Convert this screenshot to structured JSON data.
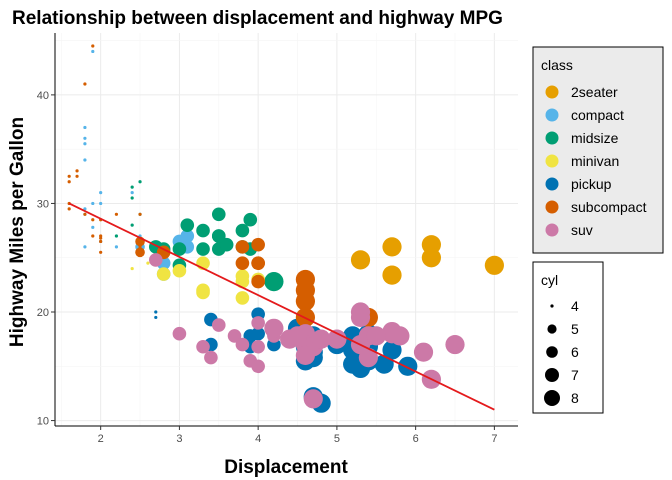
{
  "chart_data": {
    "type": "scatter",
    "title": "Relationship between  displacement and highway MPG",
    "xlabel": "Displacement",
    "ylabel": "Highway Miles per Gallon",
    "xlim": [
      1.42,
      7.3
    ],
    "ylim": [
      9.5,
      45.7
    ],
    "xticks": [
      2,
      3,
      4,
      5,
      6,
      7
    ],
    "yticks": [
      10,
      20,
      30,
      40
    ],
    "grid": true,
    "jitter": true,
    "legends": [
      {
        "title": "class",
        "kind": "color",
        "entries": [
          {
            "label": "2seater",
            "color": "#E69F00"
          },
          {
            "label": "compact",
            "color": "#56B4E9"
          },
          {
            "label": "midsize",
            "color": "#009E73"
          },
          {
            "label": "minivan",
            "color": "#F0E442"
          },
          {
            "label": "pickup",
            "color": "#0072B2"
          },
          {
            "label": "subcompact",
            "color": "#D55E00"
          },
          {
            "label": "suv",
            "color": "#CC79A7"
          }
        ]
      },
      {
        "title": "cyl",
        "kind": "size",
        "entries": [
          {
            "label": "4",
            "value": 4
          },
          {
            "label": "5",
            "value": 5
          },
          {
            "label": "6",
            "value": 6
          },
          {
            "label": "7",
            "value": 7
          },
          {
            "label": "8",
            "value": 8
          }
        ]
      }
    ],
    "trend_line": {
      "x": [
        1.6,
        7.0
      ],
      "y": [
        30.0,
        11.0
      ],
      "color": "#E41A1C"
    },
    "series": [
      {
        "name": "2seater",
        "color": "#E69F00",
        "points": [
          [
            5.3,
            24.8,
            8
          ],
          [
            5.7,
            23.4,
            8
          ],
          [
            5.7,
            26.0,
            8
          ],
          [
            6.2,
            26.2,
            8
          ],
          [
            6.2,
            25.0,
            8
          ],
          [
            7.0,
            24.3,
            8
          ]
        ]
      },
      {
        "name": "compact",
        "color": "#56B4E9",
        "points": [
          [
            1.8,
            29.0,
            4
          ],
          [
            1.8,
            29.5,
            4
          ],
          [
            1.9,
            27.8,
            4
          ],
          [
            2.0,
            31.0,
            4
          ],
          [
            2.0,
            30.0,
            4
          ],
          [
            1.8,
            34.0,
            4
          ],
          [
            1.8,
            35.5,
            4
          ],
          [
            1.8,
            37.0,
            4
          ],
          [
            1.8,
            36.0,
            4
          ],
          [
            1.9,
            44.0,
            4
          ],
          [
            2.0,
            26.5,
            4
          ],
          [
            1.8,
            26.0,
            4
          ],
          [
            2.4,
            31.0,
            4
          ],
          [
            2.5,
            27.0,
            4
          ],
          [
            2.5,
            26.0,
            5
          ],
          [
            2.8,
            24.5,
            6
          ],
          [
            2.8,
            23.5,
            6
          ],
          [
            3.0,
            26.5,
            6
          ],
          [
            3.1,
            27.0,
            6
          ],
          [
            3.1,
            26.0,
            6
          ],
          [
            2.2,
            26.0,
            4
          ],
          [
            1.9,
            30.0,
            4
          ]
        ]
      },
      {
        "name": "midsize",
        "color": "#009E73",
        "points": [
          [
            2.4,
            31.5,
            4
          ],
          [
            2.4,
            30.5,
            4
          ],
          [
            2.2,
            27.0,
            4
          ],
          [
            2.5,
            32.0,
            4
          ],
          [
            2.5,
            29.0,
            4
          ],
          [
            2.7,
            26.0,
            6
          ],
          [
            3.1,
            28.0,
            6
          ],
          [
            3.3,
            27.5,
            6
          ],
          [
            3.5,
            29.0,
            6
          ],
          [
            3.5,
            27.0,
            6
          ],
          [
            3.5,
            25.8,
            6
          ],
          [
            3.6,
            26.2,
            6
          ],
          [
            3.8,
            26.0,
            6
          ],
          [
            3.8,
            27.5,
            6
          ],
          [
            3.9,
            25.8,
            6
          ],
          [
            3.3,
            25.8,
            6
          ],
          [
            2.8,
            25.8,
            6
          ],
          [
            3.0,
            24.3,
            6
          ],
          [
            3.0,
            25.8,
            6
          ],
          [
            4.2,
            22.8,
            8
          ],
          [
            2.5,
            26.5,
            4
          ],
          [
            2.4,
            28.0,
            4
          ],
          [
            3.5,
            27.0,
            6
          ],
          [
            3.9,
            28.5,
            6
          ]
        ]
      },
      {
        "name": "minivan",
        "color": "#F0E442",
        "points": [
          [
            2.4,
            24.0,
            4
          ],
          [
            3.0,
            23.8,
            6
          ],
          [
            3.3,
            24.5,
            6
          ],
          [
            3.3,
            22.0,
            6
          ],
          [
            3.3,
            21.8,
            6
          ],
          [
            3.8,
            22.8,
            6
          ],
          [
            3.8,
            23.3,
            6
          ],
          [
            3.8,
            21.3,
            6
          ],
          [
            4.0,
            23.0,
            6
          ],
          [
            2.8,
            23.5,
            6
          ],
          [
            2.6,
            24.5,
            4
          ]
        ]
      },
      {
        "name": "pickup",
        "color": "#0072B2",
        "points": [
          [
            2.7,
            19.5,
            4
          ],
          [
            2.7,
            20.0,
            4
          ],
          [
            3.4,
            17.0,
            6
          ],
          [
            3.4,
            19.3,
            6
          ],
          [
            3.9,
            17.8,
            6
          ],
          [
            3.9,
            16.8,
            6
          ],
          [
            4.0,
            19.8,
            6
          ],
          [
            4.0,
            18.0,
            6
          ],
          [
            4.2,
            17.0,
            6
          ],
          [
            4.7,
            17.5,
            8
          ],
          [
            4.7,
            12.2,
            8
          ],
          [
            4.7,
            16.8,
            8
          ],
          [
            4.7,
            15.8,
            8
          ],
          [
            4.7,
            17.8,
            8
          ],
          [
            4.7,
            16.3,
            8
          ],
          [
            4.8,
            11.6,
            8
          ],
          [
            5.2,
            17.8,
            8
          ],
          [
            5.2,
            16.5,
            8
          ],
          [
            5.2,
            15.2,
            8
          ],
          [
            5.3,
            14.8,
            8
          ],
          [
            5.4,
            15.5,
            8
          ],
          [
            5.4,
            18.0,
            8
          ],
          [
            5.4,
            17.0,
            8
          ],
          [
            5.7,
            16.5,
            8
          ],
          [
            5.9,
            15.0,
            8
          ],
          [
            4.6,
            16.8,
            8
          ],
          [
            4.5,
            18.5,
            8
          ],
          [
            5.0,
            17.0,
            8
          ],
          [
            5.6,
            15.2,
            8
          ],
          [
            4.6,
            15.5,
            8
          ],
          [
            5.4,
            16.8,
            8
          ],
          [
            5.3,
            16.0,
            8
          ],
          [
            4.6,
            17.5,
            8
          ]
        ]
      },
      {
        "name": "subcompact",
        "color": "#D55E00",
        "points": [
          [
            1.6,
            32.5,
            4
          ],
          [
            1.6,
            32.0,
            4
          ],
          [
            1.6,
            29.5,
            4
          ],
          [
            1.6,
            30.0,
            4
          ],
          [
            1.8,
            29.0,
            4
          ],
          [
            1.8,
            41.0,
            4
          ],
          [
            1.9,
            44.5,
            4
          ],
          [
            2.0,
            28.5,
            4
          ],
          [
            2.0,
            26.5,
            4
          ],
          [
            2.0,
            25.5,
            4
          ],
          [
            2.0,
            26.8,
            4
          ],
          [
            2.2,
            29.0,
            4
          ],
          [
            2.5,
            29.0,
            4
          ],
          [
            2.5,
            26.5,
            5
          ],
          [
            2.5,
            25.5,
            5
          ],
          [
            1.7,
            32.5,
            4
          ],
          [
            1.7,
            33.0,
            4
          ],
          [
            1.9,
            28.5,
            4
          ],
          [
            2.0,
            27.0,
            4
          ],
          [
            1.9,
            27.0,
            4
          ],
          [
            3.8,
            24.5,
            6
          ],
          [
            3.8,
            26.0,
            6
          ],
          [
            4.0,
            24.5,
            6
          ],
          [
            4.0,
            26.2,
            6
          ],
          [
            4.0,
            24.5,
            6
          ],
          [
            4.0,
            22.8,
            6
          ],
          [
            4.6,
            22.0,
            8
          ],
          [
            4.6,
            21.0,
            8
          ],
          [
            4.6,
            23.0,
            8
          ],
          [
            4.6,
            19.5,
            8
          ],
          [
            5.4,
            19.5,
            8
          ],
          [
            2.8,
            25.5,
            6
          ],
          [
            2.5,
            26.0,
            4
          ]
        ]
      },
      {
        "name": "suv",
        "color": "#CC79A7",
        "points": [
          [
            2.7,
            24.8,
            6
          ],
          [
            3.0,
            18.0,
            6
          ],
          [
            3.3,
            16.8,
            6
          ],
          [
            3.5,
            18.8,
            6
          ],
          [
            3.7,
            17.8,
            6
          ],
          [
            3.8,
            17.0,
            6
          ],
          [
            3.9,
            15.5,
            6
          ],
          [
            4.0,
            16.8,
            6
          ],
          [
            4.0,
            19.0,
            6
          ],
          [
            4.2,
            17.8,
            6
          ],
          [
            4.4,
            17.5,
            8
          ],
          [
            4.6,
            18.0,
            8
          ],
          [
            4.6,
            17.0,
            8
          ],
          [
            4.7,
            16.8,
            8
          ],
          [
            4.8,
            17.5,
            8
          ],
          [
            5.0,
            17.5,
            8
          ],
          [
            5.3,
            19.5,
            8
          ],
          [
            5.3,
            20.0,
            8
          ],
          [
            5.3,
            17.0,
            8
          ],
          [
            5.4,
            17.8,
            8
          ],
          [
            5.7,
            18.0,
            8
          ],
          [
            5.7,
            18.2,
            8
          ],
          [
            5.8,
            17.8,
            8
          ],
          [
            6.1,
            16.3,
            8
          ],
          [
            6.2,
            13.8,
            8
          ],
          [
            6.5,
            17.0,
            8
          ],
          [
            4.6,
            16.0,
            8
          ],
          [
            4.7,
            12.0,
            8
          ],
          [
            4.2,
            18.5,
            8
          ],
          [
            4.5,
            17.8,
            8
          ],
          [
            5.4,
            15.8,
            8
          ],
          [
            5.5,
            17.8,
            8
          ],
          [
            3.4,
            15.8,
            6
          ],
          [
            4.0,
            15.0,
            6
          ]
        ]
      }
    ]
  }
}
